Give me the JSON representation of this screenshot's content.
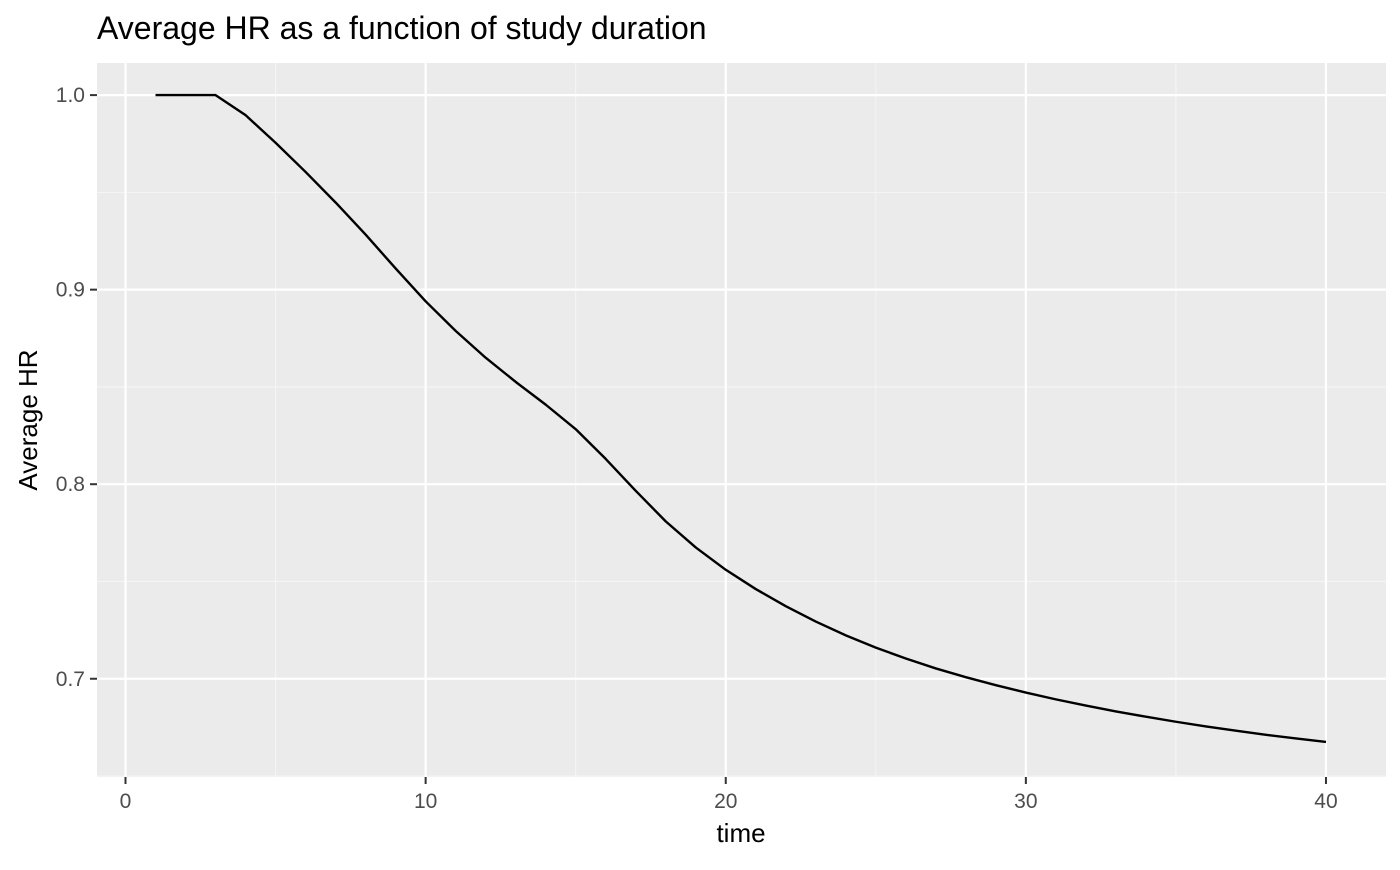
{
  "chart_data": {
    "type": "line",
    "title": "Average HR as a function of study duration",
    "xlabel": "time",
    "ylabel": "Average HR",
    "xlim": [
      -0.95,
      42.0
    ],
    "ylim": [
      0.6495,
      1.0165
    ],
    "x_ticks": [
      0,
      10,
      20,
      30,
      40
    ],
    "x_tick_labels": [
      "0",
      "10",
      "20",
      "30",
      "40"
    ],
    "x_minor_ticks": [
      5,
      15,
      25,
      35
    ],
    "y_ticks": [
      0.7,
      0.8,
      0.9,
      1.0
    ],
    "y_tick_labels": [
      "0.7",
      "0.8",
      "0.9",
      "1.0"
    ],
    "y_minor_ticks": [
      0.65,
      0.75,
      0.85,
      0.95
    ],
    "grid": true,
    "legend": "none",
    "colors": {
      "panel_background": "#ebebeb",
      "grid_major": "#ffffff",
      "grid_minor": "#f5f5f5",
      "line": "#000000",
      "tick_label": "#4d4d4d",
      "axis_title": "#000000"
    },
    "series": [
      {
        "name": "Average HR",
        "x": [
          1,
          2,
          3,
          4,
          5,
          6,
          7,
          8,
          9,
          10,
          11,
          12,
          13,
          14,
          15,
          16,
          17,
          18,
          19,
          20,
          21,
          22,
          23,
          24,
          25,
          26,
          27,
          28,
          29,
          30,
          31,
          32,
          33,
          34,
          35,
          36,
          37,
          38,
          39,
          40
        ],
        "y": [
          1.0,
          1.0,
          1.0,
          0.9897,
          0.9755,
          0.9605,
          0.9448,
          0.9283,
          0.9109,
          0.894,
          0.8788,
          0.865,
          0.8526,
          0.8409,
          0.8283,
          0.813,
          0.7966,
          0.7809,
          0.7675,
          0.756,
          0.7461,
          0.7373,
          0.7294,
          0.7223,
          0.716,
          0.7104,
          0.7053,
          0.7008,
          0.6967,
          0.6929,
          0.6894,
          0.6862,
          0.6832,
          0.6805,
          0.6779,
          0.6755,
          0.6733,
          0.6712,
          0.6693,
          0.6675
        ]
      }
    ]
  }
}
